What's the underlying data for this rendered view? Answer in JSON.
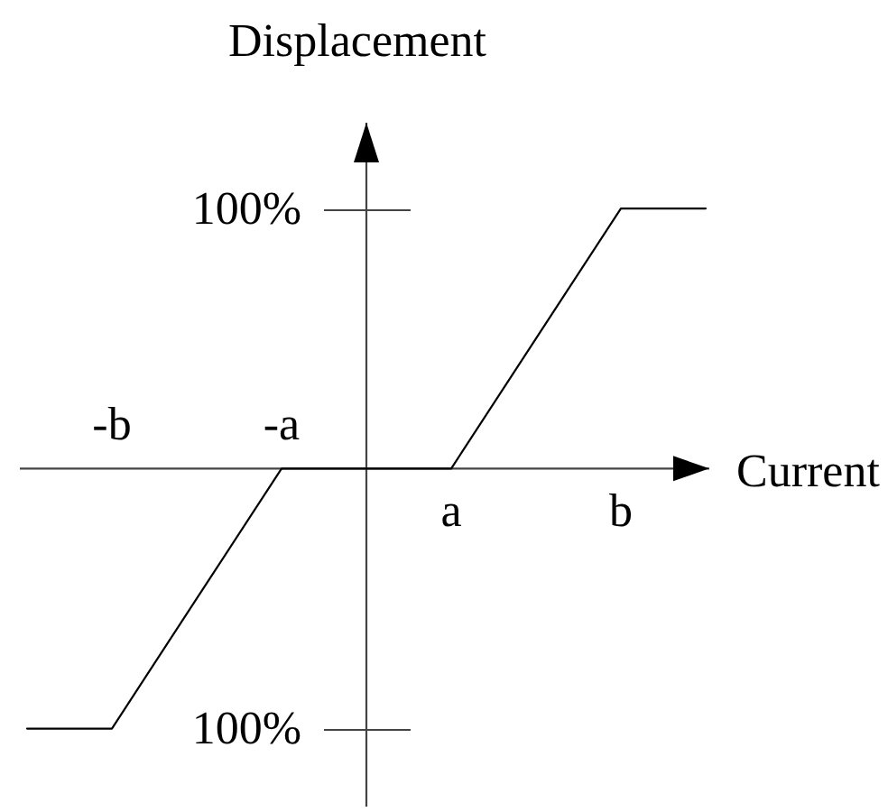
{
  "chart_data": {
    "type": "line",
    "xlabel": "Current",
    "ylabel": "Displacement",
    "categories": [
      null,
      "-b",
      null,
      "-a",
      null,
      "a",
      null,
      "b",
      null
    ],
    "series": [
      {
        "color": "#000000",
        "values": [
          -100,
          -100,
          -50,
          0,
          0,
          0,
          50,
          100,
          100
        ]
      }
    ],
    "ylim": [
      -130,
      133
    ],
    "yticks": [
      {
        "value": -100,
        "label": "100%"
      },
      {
        "value": 100,
        "label": "100%"
      }
    ],
    "line_style": "solid"
  }
}
